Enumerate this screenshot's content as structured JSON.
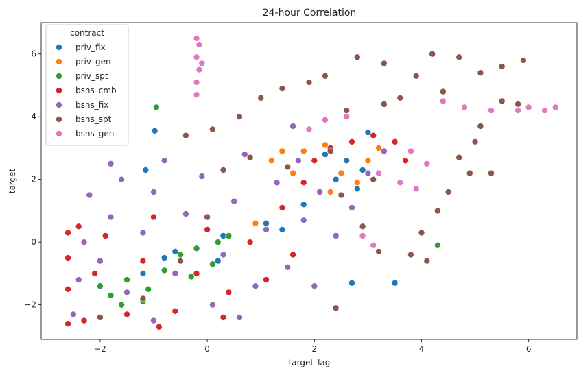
{
  "chart_data": {
    "type": "scatter",
    "title": "24-hour Correlation",
    "xlabel": "target_lag",
    "ylabel": "target",
    "xlim": [
      -3.1,
      6.9
    ],
    "ylim": [
      -3.1,
      7.0
    ],
    "x_ticks": [
      -2,
      0,
      2,
      4,
      6
    ],
    "y_ticks": [
      -2,
      0,
      2,
      4,
      6
    ],
    "x_tick_labels": [
      "−2",
      "0",
      "2",
      "4",
      "6"
    ],
    "y_tick_labels": [
      "−2",
      "0",
      "2",
      "4",
      "6"
    ],
    "grid": false,
    "legend": {
      "title": "contract",
      "placement": "top-left"
    },
    "series": [
      {
        "name": "priv_fix",
        "color": "#1f77b4",
        "points": [
          [
            -1.2,
            -1.0
          ],
          [
            -0.6,
            -0.3
          ],
          [
            0.3,
            0.2
          ],
          [
            1.1,
            0.6
          ],
          [
            1.8,
            1.2
          ],
          [
            2.2,
            2.8
          ],
          [
            2.6,
            2.6
          ],
          [
            3.0,
            3.5
          ],
          [
            2.8,
            1.7
          ],
          [
            3.5,
            -1.3
          ],
          [
            -0.98,
            3.55
          ],
          [
            -1.15,
            2.3
          ],
          [
            2.7,
            -1.3
          ],
          [
            -0.8,
            -0.5
          ],
          [
            0.2,
            -0.6
          ],
          [
            1.4,
            0.4
          ],
          [
            2.4,
            2.0
          ],
          [
            2.9,
            2.3
          ]
        ]
      },
      {
        "name": "priv_gen",
        "color": "#ff7f0e",
        "points": [
          [
            1.2,
            2.6
          ],
          [
            1.5,
            2.4
          ],
          [
            1.8,
            2.9
          ],
          [
            2.2,
            3.1
          ],
          [
            2.5,
            2.2
          ],
          [
            2.8,
            1.9
          ],
          [
            3.0,
            2.6
          ],
          [
            1.6,
            2.2
          ],
          [
            2.3,
            1.6
          ],
          [
            3.2,
            3.0
          ],
          [
            1.4,
            2.9
          ],
          [
            0.9,
            0.6
          ]
        ]
      },
      {
        "name": "priv_spt",
        "color": "#2ca02c",
        "points": [
          [
            -2.0,
            -1.4
          ],
          [
            -1.8,
            -1.7
          ],
          [
            -1.5,
            -1.2
          ],
          [
            -1.2,
            -1.9
          ],
          [
            -0.8,
            -0.9
          ],
          [
            -0.5,
            -0.4
          ],
          [
            -0.2,
            -0.2
          ],
          [
            0.1,
            -0.7
          ],
          [
            0.4,
            0.2
          ],
          [
            -0.95,
            4.3
          ],
          [
            4.3,
            -0.1
          ],
          [
            -1.6,
            -2.0
          ],
          [
            -0.3,
            -1.1
          ],
          [
            0.2,
            0.0
          ],
          [
            -1.1,
            -1.5
          ]
        ]
      },
      {
        "name": "bsns_cmb",
        "color": "#d62728",
        "points": [
          [
            -2.6,
            -2.6
          ],
          [
            -2.6,
            -1.5
          ],
          [
            -2.6,
            -0.5
          ],
          [
            -2.6,
            0.3
          ],
          [
            -2.3,
            -2.5
          ],
          [
            -2.1,
            -1.0
          ],
          [
            -1.9,
            0.2
          ],
          [
            -1.5,
            -2.3
          ],
          [
            -1.2,
            -0.6
          ],
          [
            -1.0,
            0.8
          ],
          [
            -0.6,
            -2.2
          ],
          [
            -0.2,
            -1.0
          ],
          [
            0.0,
            0.4
          ],
          [
            0.4,
            -1.6
          ],
          [
            0.8,
            0.0
          ],
          [
            1.1,
            -1.2
          ],
          [
            1.4,
            1.1
          ],
          [
            1.8,
            1.9
          ],
          [
            2.3,
            3.0
          ],
          [
            2.7,
            3.2
          ],
          [
            3.1,
            3.4
          ],
          [
            3.5,
            3.2
          ],
          [
            3.7,
            2.6
          ],
          [
            2.0,
            2.6
          ],
          [
            -2.4,
            0.5
          ],
          [
            -0.9,
            -2.7
          ],
          [
            0.3,
            -2.4
          ],
          [
            1.6,
            -0.4
          ]
        ]
      },
      {
        "name": "bsns_fix",
        "color": "#9467bd",
        "points": [
          [
            -2.5,
            -2.3
          ],
          [
            -2.4,
            -1.2
          ],
          [
            -2.3,
            0.0
          ],
          [
            -2.2,
            1.5
          ],
          [
            -2.0,
            -0.6
          ],
          [
            -1.8,
            0.8
          ],
          [
            -1.6,
            2.0
          ],
          [
            -1.5,
            -1.6
          ],
          [
            -1.2,
            0.3
          ],
          [
            -1.0,
            1.6
          ],
          [
            -0.8,
            2.6
          ],
          [
            -0.6,
            -1.0
          ],
          [
            -0.4,
            0.9
          ],
          [
            -0.1,
            2.1
          ],
          [
            0.1,
            -2.0
          ],
          [
            0.3,
            -0.4
          ],
          [
            0.5,
            1.3
          ],
          [
            0.7,
            2.8
          ],
          [
            0.9,
            -1.4
          ],
          [
            1.1,
            0.4
          ],
          [
            1.3,
            1.9
          ],
          [
            1.5,
            -0.8
          ],
          [
            1.8,
            0.7
          ],
          [
            2.1,
            1.6
          ],
          [
            2.4,
            0.2
          ],
          [
            2.7,
            1.1
          ],
          [
            3.0,
            2.2
          ],
          [
            3.3,
            2.9
          ],
          [
            1.6,
            3.7
          ],
          [
            2.0,
            -1.4
          ],
          [
            -1.8,
            2.5
          ],
          [
            -1.0,
            -2.5
          ],
          [
            0.6,
            -2.4
          ],
          [
            1.7,
            2.6
          ]
        ]
      },
      {
        "name": "bsns_spt",
        "color": "#8c564b",
        "points": [
          [
            -2.0,
            -2.4
          ],
          [
            -1.2,
            -1.8
          ],
          [
            -0.5,
            -0.6
          ],
          [
            0.0,
            0.8
          ],
          [
            0.3,
            2.3
          ],
          [
            0.1,
            3.6
          ],
          [
            0.6,
            4.0
          ],
          [
            1.0,
            4.6
          ],
          [
            1.4,
            4.9
          ],
          [
            1.9,
            5.1
          ],
          [
            2.2,
            5.3
          ],
          [
            2.8,
            5.9
          ],
          [
            3.3,
            5.7
          ],
          [
            3.9,
            5.3
          ],
          [
            4.2,
            6.0
          ],
          [
            4.7,
            5.9
          ],
          [
            5.1,
            5.4
          ],
          [
            5.5,
            5.6
          ],
          [
            5.9,
            5.8
          ],
          [
            5.8,
            4.4
          ],
          [
            5.5,
            4.5
          ],
          [
            5.1,
            3.7
          ],
          [
            4.9,
            2.2
          ],
          [
            4.5,
            1.6
          ],
          [
            4.3,
            1.0
          ],
          [
            4.0,
            0.3
          ],
          [
            3.8,
            -0.4
          ],
          [
            3.2,
            -0.3
          ],
          [
            2.9,
            0.5
          ],
          [
            2.5,
            1.5
          ],
          [
            2.3,
            2.9
          ],
          [
            2.6,
            4.2
          ],
          [
            3.3,
            4.4
          ],
          [
            3.6,
            4.6
          ],
          [
            4.4,
            4.8
          ],
          [
            4.7,
            2.7
          ],
          [
            5.0,
            3.2
          ],
          [
            1.5,
            2.4
          ],
          [
            0.8,
            2.7
          ],
          [
            2.4,
            -2.1
          ],
          [
            4.1,
            -0.6
          ],
          [
            -0.4,
            3.4
          ],
          [
            3.1,
            2.0
          ],
          [
            5.3,
            2.2
          ]
        ]
      },
      {
        "name": "bsns_gen",
        "color": "#e377c2",
        "points": [
          [
            -0.2,
            4.7
          ],
          [
            -0.2,
            5.1
          ],
          [
            -0.15,
            5.5
          ],
          [
            -0.2,
            5.9
          ],
          [
            -0.15,
            6.3
          ],
          [
            -0.2,
            6.5
          ],
          [
            -0.1,
            5.7
          ],
          [
            1.9,
            3.6
          ],
          [
            2.2,
            3.9
          ],
          [
            2.6,
            4.0
          ],
          [
            3.2,
            2.2
          ],
          [
            3.6,
            1.9
          ],
          [
            3.8,
            2.9
          ],
          [
            4.1,
            2.5
          ],
          [
            4.4,
            4.5
          ],
          [
            4.8,
            4.3
          ],
          [
            5.3,
            4.2
          ],
          [
            5.8,
            4.2
          ],
          [
            6.0,
            4.3
          ],
          [
            6.3,
            4.2
          ],
          [
            6.5,
            4.3
          ],
          [
            3.9,
            1.7
          ],
          [
            2.9,
            0.2
          ],
          [
            3.1,
            -0.1
          ]
        ]
      }
    ]
  }
}
